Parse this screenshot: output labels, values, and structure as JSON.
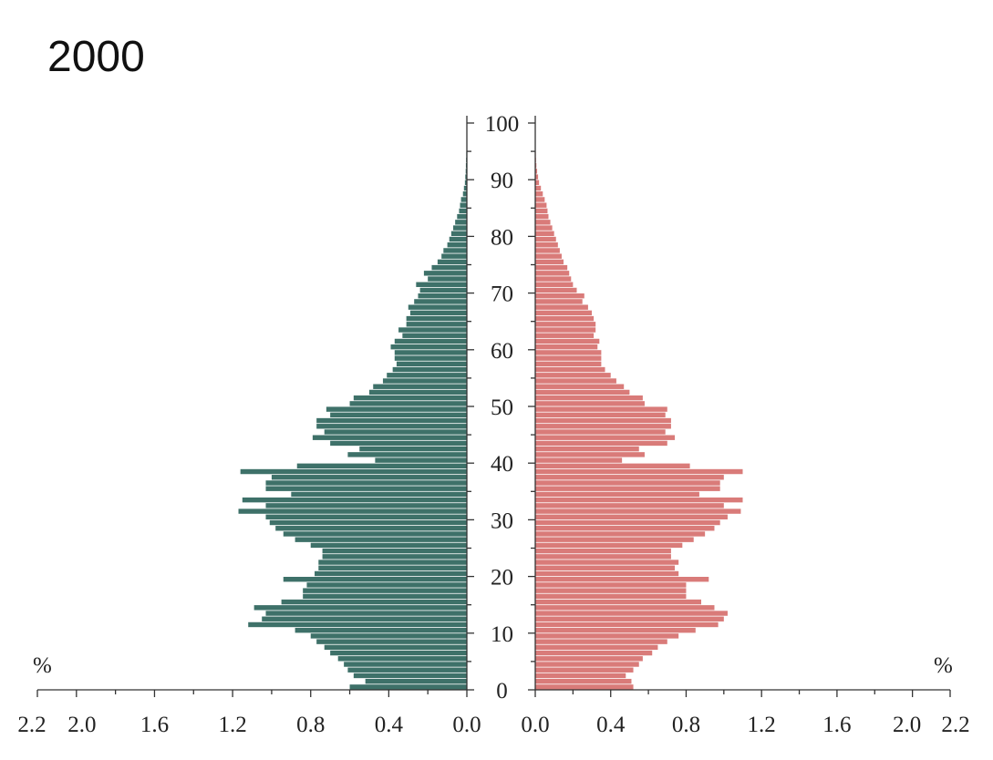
{
  "chart_data": {
    "type": "pyramid",
    "title": "2000",
    "unit": "%",
    "y": [
      0,
      1,
      2,
      3,
      4,
      5,
      6,
      7,
      8,
      9,
      10,
      11,
      12,
      13,
      14,
      15,
      16,
      17,
      18,
      19,
      20,
      21,
      22,
      23,
      24,
      25,
      26,
      27,
      28,
      29,
      30,
      31,
      32,
      33,
      34,
      35,
      36,
      37,
      38,
      39,
      40,
      41,
      42,
      43,
      44,
      45,
      46,
      47,
      48,
      49,
      50,
      51,
      52,
      53,
      54,
      55,
      56,
      57,
      58,
      59,
      60,
      61,
      62,
      63,
      64,
      65,
      66,
      67,
      68,
      69,
      70,
      71,
      72,
      73,
      74,
      75,
      76,
      77,
      78,
      79,
      80,
      81,
      82,
      83,
      84,
      85,
      86,
      87,
      88,
      89,
      90,
      91,
      92,
      93,
      94,
      95,
      96,
      97,
      98,
      99,
      100
    ],
    "series": [
      {
        "side": "left",
        "color": "#3e7169",
        "values": [
          0.6,
          0.52,
          0.58,
          0.61,
          0.63,
          0.66,
          0.7,
          0.73,
          0.77,
          0.8,
          0.88,
          1.12,
          1.05,
          1.03,
          1.09,
          0.95,
          0.84,
          0.84,
          0.82,
          0.94,
          0.78,
          0.76,
          0.76,
          0.74,
          0.74,
          0.8,
          0.88,
          0.94,
          0.98,
          1.01,
          1.03,
          1.17,
          1.03,
          1.15,
          0.9,
          1.03,
          1.03,
          1.0,
          1.16,
          0.87,
          0.47,
          0.61,
          0.55,
          0.7,
          0.79,
          0.73,
          0.77,
          0.77,
          0.7,
          0.72,
          0.6,
          0.58,
          0.5,
          0.48,
          0.43,
          0.41,
          0.38,
          0.36,
          0.37,
          0.37,
          0.39,
          0.37,
          0.33,
          0.35,
          0.31,
          0.31,
          0.29,
          0.3,
          0.27,
          0.25,
          0.24,
          0.26,
          0.2,
          0.22,
          0.18,
          0.15,
          0.13,
          0.12,
          0.1,
          0.09,
          0.08,
          0.07,
          0.06,
          0.05,
          0.04,
          0.035,
          0.03,
          0.02,
          0.015,
          0.01,
          0.008,
          0.006,
          0.005,
          0.004,
          0.003,
          0.002,
          0.002,
          0.001,
          0.001,
          0.001,
          0.001
        ]
      },
      {
        "side": "right",
        "color": "#d97b79",
        "values": [
          0.52,
          0.51,
          0.48,
          0.52,
          0.55,
          0.57,
          0.62,
          0.65,
          0.7,
          0.76,
          0.85,
          0.97,
          1.0,
          1.02,
          0.95,
          0.88,
          0.8,
          0.8,
          0.8,
          0.92,
          0.76,
          0.74,
          0.76,
          0.72,
          0.72,
          0.78,
          0.84,
          0.9,
          0.95,
          0.98,
          1.02,
          1.09,
          1.0,
          1.1,
          0.87,
          0.98,
          0.98,
          1.0,
          1.1,
          0.82,
          0.46,
          0.58,
          0.55,
          0.7,
          0.74,
          0.69,
          0.72,
          0.72,
          0.69,
          0.7,
          0.58,
          0.57,
          0.5,
          0.47,
          0.43,
          0.4,
          0.37,
          0.35,
          0.35,
          0.35,
          0.33,
          0.34,
          0.31,
          0.32,
          0.32,
          0.31,
          0.3,
          0.28,
          0.25,
          0.26,
          0.22,
          0.2,
          0.19,
          0.18,
          0.17,
          0.15,
          0.14,
          0.13,
          0.12,
          0.11,
          0.1,
          0.09,
          0.08,
          0.07,
          0.065,
          0.06,
          0.05,
          0.04,
          0.03,
          0.02,
          0.015,
          0.01,
          0.006,
          0.004,
          0.003,
          0.002,
          0.002,
          0.001,
          0.001,
          0.001,
          0.001
        ]
      }
    ],
    "xlim": [
      0,
      2.2
    ],
    "xticks": [
      {
        "value": 0,
        "label": "0.0"
      },
      {
        "value": 0.4,
        "label": "0.4"
      },
      {
        "value": 0.8,
        "label": "0.8"
      },
      {
        "value": 1.2,
        "label": "1.2"
      },
      {
        "value": 1.6,
        "label": "1.6"
      },
      {
        "value": 2.0,
        "label": "2.0"
      },
      2.2
    ],
    "xminor_ticks": [
      0.2,
      0.6,
      1.0,
      1.4,
      1.8
    ],
    "ylim": [
      0,
      100
    ],
    "yticks": [
      0,
      10,
      20,
      30,
      40,
      50,
      60,
      70,
      80,
      90,
      100
    ],
    "yminor_ticks": [
      5,
      15,
      25,
      35,
      45,
      55,
      65,
      75,
      85,
      95
    ]
  }
}
